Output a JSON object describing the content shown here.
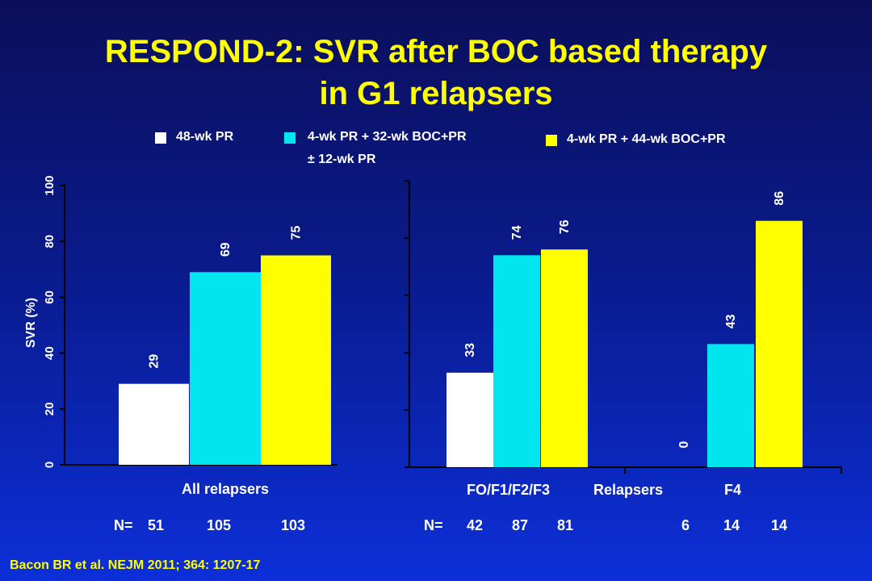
{
  "title_line1": "RESPOND-2: SVR after BOC based therapy",
  "title_line2": "in G1 relapsers",
  "legend": [
    {
      "label": "48-wk PR",
      "color": "#ffffff"
    },
    {
      "label": "4-wk PR + 32-wk BOC+PR",
      "label2": "± 12-wk PR",
      "color": "#00e5ee"
    },
    {
      "label": "4-wk PR + 44-wk BOC+PR",
      "color": "#ffff00"
    }
  ],
  "citation": "Bacon BR et al. NEJM 2011; 364: 1207-17",
  "chart_data": [
    {
      "type": "bar",
      "ylabel": "SVR (%)",
      "ylim": [
        0,
        100
      ],
      "yticks": [
        "0",
        "20",
        "40",
        "60",
        "80",
        "100"
      ],
      "categories": [
        "All relapsers"
      ],
      "xlabel": "All relapsers",
      "series": [
        {
          "name": "48-wk PR",
          "color": "#ffffff",
          "values": [
            29
          ]
        },
        {
          "name": "4-wk PR + 32-wk BOC+PR ± 12-wk PR",
          "color": "#00e5ee",
          "values": [
            69
          ]
        },
        {
          "name": "4-wk PR + 44-wk BOC+PR",
          "color": "#ffff00",
          "values": [
            75
          ]
        }
      ],
      "n_prefix": "N=",
      "n_values": [
        "51",
        "105",
        "103"
      ]
    },
    {
      "type": "bar",
      "ylim": [
        0,
        100
      ],
      "categories": [
        "FO/F1/F2/F3",
        "F4"
      ],
      "xlabel": "FO/F1/F2/F3   Relapsers        F4",
      "xlabel_parts": [
        "FO/F1/F2/F3",
        "Relapsers",
        "F4"
      ],
      "series": [
        {
          "name": "48-wk PR",
          "color": "#ffffff",
          "values": [
            33,
            0
          ]
        },
        {
          "name": "4-wk PR + 32-wk BOC+PR ± 12-wk PR",
          "color": "#00e5ee",
          "values": [
            74,
            43
          ]
        },
        {
          "name": "4-wk PR + 44-wk BOC+PR",
          "color": "#ffff00",
          "values": [
            76,
            86
          ]
        }
      ],
      "n_prefix": "N=",
      "n_values": [
        "42",
        "87",
        "81",
        "6",
        "14",
        "14"
      ]
    }
  ]
}
